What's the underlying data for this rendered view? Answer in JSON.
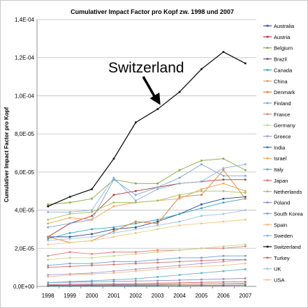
{
  "chart_data": {
    "type": "line",
    "title": "Cumulativer Impact Factor pro Kopf zw. 1998 und 2007",
    "xlabel": "",
    "ylabel": "Cumulativer Impact Factor pro Kopf",
    "x": [
      "1998",
      "1999",
      "2000",
      "2001",
      "2002",
      "2003",
      "2004",
      "2005",
      "2006",
      "2007"
    ],
    "ylim": [
      0,
      0.00014
    ],
    "yticks": [
      0,
      2e-05,
      4e-05,
      6e-05,
      8e-05,
      0.0001,
      0.00012,
      0.00014
    ],
    "ytick_labels": [
      "0,0E+00",
      "2,0E-05",
      "4,0E-05",
      "6,0E-05",
      "8,0E-05",
      "1,0E-04",
      "1,2E-04",
      "1,4E-04"
    ],
    "grid": "horizontal",
    "legend_position": "right",
    "annotation": {
      "text": "Switzerland",
      "arrow_target_year": "2003"
    },
    "series": [
      {
        "name": "Australia",
        "color": "#2c4d8a",
        "values": [
          2.6e-05,
          2.6e-05,
          2.75e-05,
          3e-05,
          3.1e-05,
          3.4e-05,
          3.8e-05,
          4.3e-05,
          4.6e-05,
          4.7e-05
        ]
      },
      {
        "name": "Austria",
        "color": "#a83a33",
        "values": [
          2.6e-05,
          3.3e-05,
          3.7e-05,
          4.8e-05,
          5e-05,
          5.2e-05,
          5.4e-05,
          5.5e-05,
          5.6e-05,
          5.6e-05
        ]
      },
      {
        "name": "Belgium",
        "color": "#86a73e",
        "values": [
          4.3e-05,
          4.4e-05,
          4.6e-05,
          5.6e-05,
          5.4e-05,
          5.4e-05,
          6.1e-05,
          6.6e-05,
          6.7e-05,
          6.1e-05
        ]
      },
      {
        "name": "Brazil",
        "color": "#6a4c8e",
        "values": [
          5e-07,
          6e-07,
          7e-07,
          8e-07,
          9e-07,
          1e-06,
          1.1e-06,
          1.2e-06,
          1.3e-06,
          1.4e-06
        ]
      },
      {
        "name": "Canada",
        "color": "#3ba3b8",
        "values": [
          2.5e-05,
          2.8e-05,
          3e-05,
          3.1e-05,
          3.3e-05,
          3.5e-05,
          3.8e-05,
          4.1e-05,
          4.4e-05,
          4.6e-05
        ]
      },
      {
        "name": "China",
        "color": "#d3a36b",
        "values": [
          2e-07,
          3e-07,
          4e-07,
          5e-07,
          6e-07,
          8e-07,
          1e-06,
          1.2e-06,
          1.4e-06,
          1.6e-06
        ]
      },
      {
        "name": "Denmark",
        "color": "#e07b39",
        "values": [
          2.6e-05,
          2.3e-05,
          2.4e-05,
          2.9e-05,
          3.4e-05,
          3.3e-05,
          4.7e-05,
          4.8e-05,
          6.1e-05,
          4.6e-05
        ]
      },
      {
        "name": "Finland",
        "color": "#7fa2d6",
        "values": [
          3.1e-05,
          3.3e-05,
          3.5e-05,
          5.6e-05,
          4.8e-05,
          5.2e-05,
          5.7e-05,
          6.4e-05,
          5.8e-05,
          5.8e-05
        ]
      },
      {
        "name": "France",
        "color": "#e07f7f",
        "values": [
          1.6e-05,
          1.8e-05,
          1.7e-05,
          1.8e-05,
          1.8e-05,
          1.9e-05,
          1.9e-05,
          2e-05,
          2e-05,
          2.1e-05
        ]
      },
      {
        "name": "Germany",
        "color": "#c3d78c",
        "values": [
          1.4e-05,
          1.5e-05,
          1.5e-05,
          1.6e-05,
          1.7e-05,
          1.8e-05,
          1.9e-05,
          2e-05,
          2.1e-05,
          2.2e-05
        ]
      },
      {
        "name": "Greece",
        "color": "#a89bc8",
        "values": [
          6e-06,
          6.5e-06,
          7e-06,
          8e-06,
          9e-06,
          1e-05,
          1.1e-05,
          1.2e-05,
          1.3e-05,
          1.4e-05
        ]
      },
      {
        "name": "India",
        "color": "#2f7f9e",
        "values": [
          2e-07,
          2e-07,
          3e-07,
          3e-07,
          3e-07,
          4e-07,
          4e-07,
          5e-07,
          5e-07,
          6e-07
        ]
      },
      {
        "name": "Israel",
        "color": "#f0a35a",
        "values": [
          3.3e-05,
          3.6e-05,
          3.5e-05,
          4.2e-05,
          4.4e-05,
          4.5e-05,
          4.6e-05,
          5.1e-05,
          5.4e-05,
          5e-05
        ]
      },
      {
        "name": "Italy",
        "color": "#6f9ec7",
        "values": [
          1.1e-05,
          1.2e-05,
          1.2e-05,
          1.3e-05,
          1.3e-05,
          1.4e-05,
          1.5e-05,
          1.5e-05,
          1.6e-05,
          1.6e-05
        ]
      },
      {
        "name": "Japan",
        "color": "#d46e6e",
        "values": [
          1e-05,
          1.05e-05,
          1.1e-05,
          1.15e-05,
          1.2e-05,
          1.25e-05,
          1.3e-05,
          1.35e-05,
          1.4e-05,
          1.4e-05
        ]
      },
      {
        "name": "Netherlands",
        "color": "#a6bf5e",
        "values": [
          3.5e-05,
          3.8e-05,
          3.9e-05,
          4.4e-05,
          4.4e-05,
          4.5e-05,
          4.8e-05,
          5e-05,
          5e-05,
          4.9e-05
        ]
      },
      {
        "name": "Poland",
        "color": "#9a86c1",
        "values": [
          2e-06,
          2.2e-06,
          2.4e-06,
          2.6e-06,
          2.8e-06,
          3e-06,
          3.3e-06,
          3.6e-06,
          3.9e-06,
          4.2e-06
        ]
      },
      {
        "name": "South Korea",
        "color": "#5fb3c6",
        "values": [
          2e-06,
          2.5e-06,
          3e-06,
          3.5e-06,
          4e-06,
          5e-06,
          6e-06,
          7e-06,
          8e-06,
          9e-06
        ]
      },
      {
        "name": "Spain",
        "color": "#f3b98a",
        "values": [
          5e-06,
          6e-06,
          6.5e-06,
          7e-06,
          8e-06,
          9e-06,
          1e-05,
          1.05e-05,
          1.1e-05,
          1.2e-05
        ]
      },
      {
        "name": "Sweden",
        "color": "#8ab0d9",
        "values": [
          3.9e-05,
          3.9e-05,
          4e-05,
          5.7e-05,
          4.5e-05,
          5.1e-05,
          5.4e-05,
          5.5e-05,
          6.2e-05,
          6.4e-05
        ]
      },
      {
        "name": "Switzerland",
        "color": "#111111",
        "values": [
          4.2e-05,
          4.7e-05,
          5.1e-05,
          6.7e-05,
          8.6e-05,
          9.3e-05,
          0.000102,
          0.000114,
          0.000123,
          0.000117
        ]
      },
      {
        "name": "Turkey",
        "color": "#c96a6a",
        "values": [
          1e-06,
          1.1e-06,
          1.2e-06,
          1.3e-06,
          1.5e-06,
          1.7e-06,
          1.9e-06,
          2.1e-06,
          2.3e-06,
          2.5e-06
        ]
      },
      {
        "name": "UK",
        "color": "#9cc3e4",
        "values": [
          2.4e-05,
          2.5e-05,
          2.6e-05,
          2.8e-05,
          3e-05,
          3.2e-05,
          3.4e-05,
          3.7e-05,
          3.8e-05,
          4e-05
        ]
      },
      {
        "name": "USA",
        "color": "#f5c77f",
        "values": [
          2.2e-05,
          2.3e-05,
          2.4e-05,
          2.6e-05,
          2.8e-05,
          3e-05,
          3.2e-05,
          3.3e-05,
          3.4e-05,
          3.5e-05
        ]
      }
    ]
  }
}
